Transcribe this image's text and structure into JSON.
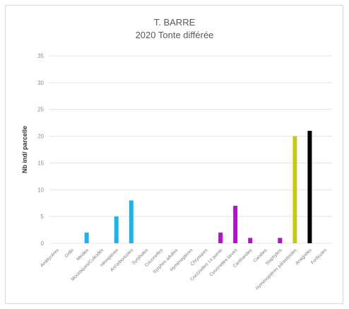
{
  "chart_data": {
    "type": "bar",
    "title": "T. BARRE",
    "subtitle": "2020 Tonte différée",
    "ylabel": "Nb ind/ parcelle",
    "xlabel": "",
    "ylim": [
      0,
      35
    ],
    "yticks": [
      0,
      5,
      10,
      15,
      20,
      25,
      30,
      35
    ],
    "grid": true,
    "legend": "none",
    "categories": [
      "Amblycères",
      "Grillo",
      "Mirides",
      "Moustiques/Culicidés",
      "Hémiptères",
      "Ant'arboricoles",
      "Syrphides",
      "Coccinelles",
      "Syrphes adultes",
      "Hyménoptères",
      "Chrysopes",
      "Coccinelles 14 points",
      "Coccinelles larves",
      "Cantharides",
      "Carabes",
      "Staphylins",
      "Hyménoptères parasitoïdes",
      "Araignées",
      "Forficules"
    ],
    "values": [
      0,
      0,
      2,
      0,
      5,
      8,
      0,
      0,
      0,
      0,
      0,
      2,
      7,
      1,
      0,
      1,
      20,
      21,
      0
    ],
    "colors": [
      "#1fb2e6",
      "#1fb2e6",
      "#1fb2e6",
      "#1fb2e6",
      "#1fb2e6",
      "#1fb2e6",
      "#1fb2e6",
      "#1fb2e6",
      "#1fb2e6",
      "#1fb2e6",
      "#b014c8",
      "#b014c8",
      "#b014c8",
      "#b014c8",
      "#b014c8",
      "#b014c8",
      "#c6c91a",
      "#000000",
      "#000000"
    ]
  }
}
